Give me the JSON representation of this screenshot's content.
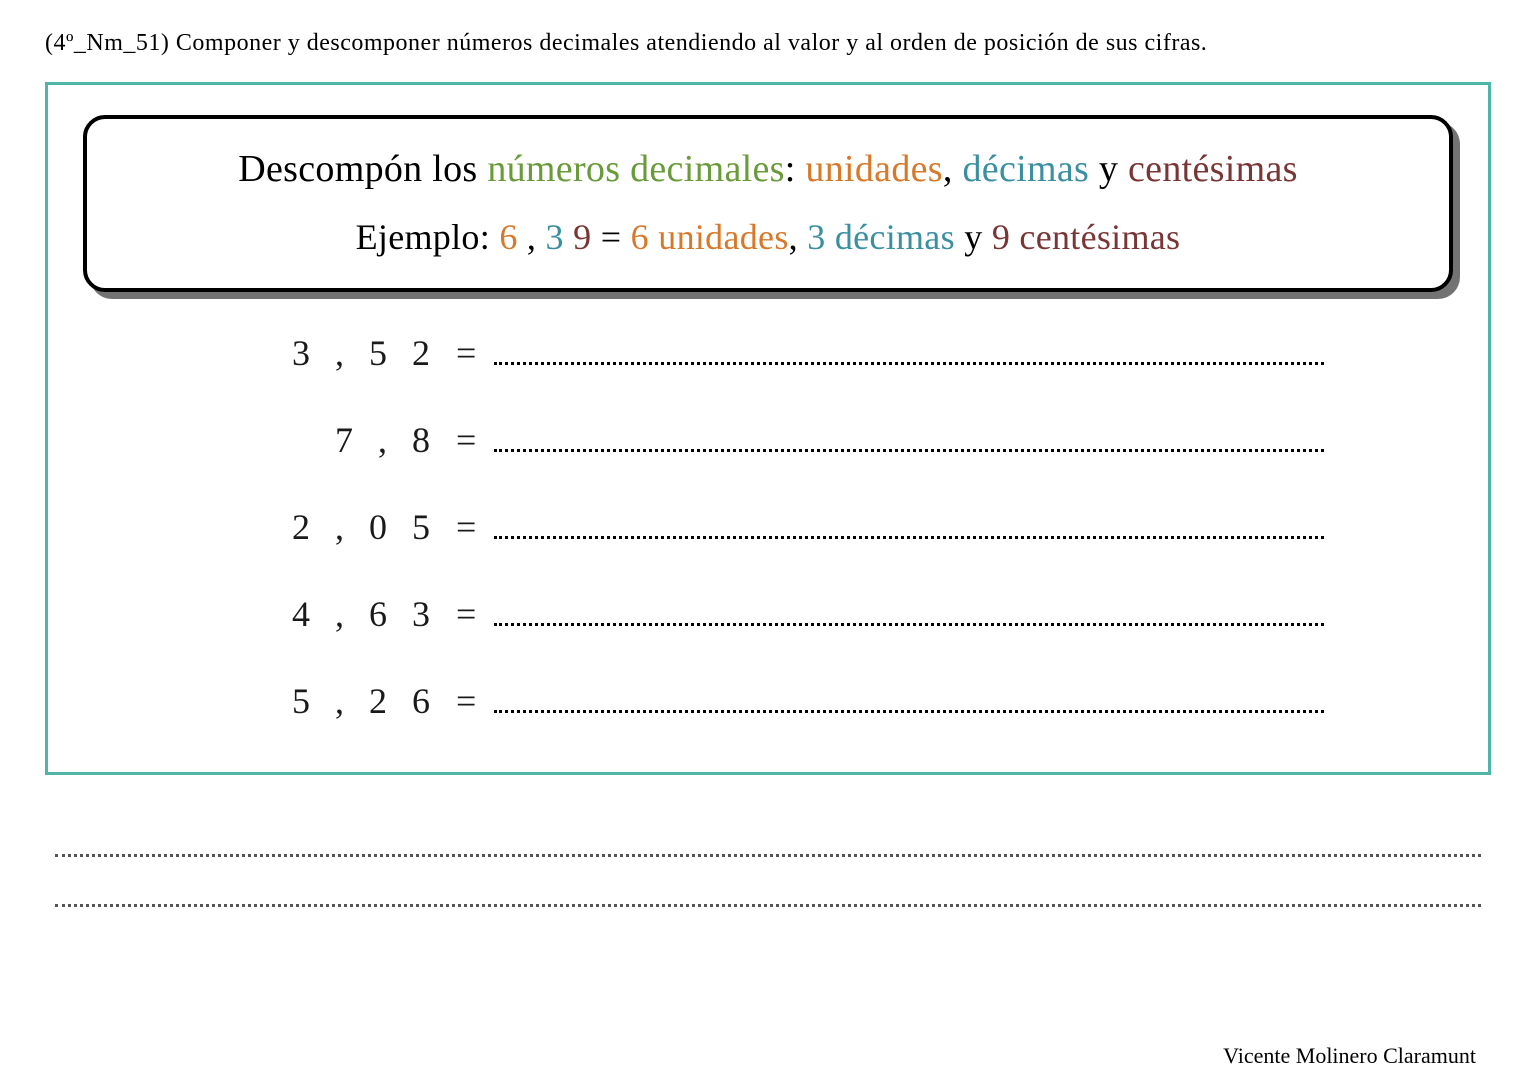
{
  "header": {
    "text": "(4º_Nm_51) Componer y descomponer números decimales atendiendo al valor y al orden de posición de sus cifras."
  },
  "instruction": {
    "line1": {
      "part1": "Descompón los ",
      "part2": "números decimales",
      "part3": ": ",
      "part4": "unidades",
      "part5": ", ",
      "part6": "décimas",
      "part7": " y ",
      "part8": "centésimas"
    },
    "line2": {
      "part1": "Ejemplo: ",
      "part2": "6",
      "part3": " , ",
      "part4": "3",
      "part5": " ",
      "part6": "9",
      "part7": "  =  ",
      "part8": "6 unidades",
      "part9": ", ",
      "part10": "3 décimas",
      "part11": " y ",
      "part12": "9 centésimas"
    }
  },
  "exercises": [
    {
      "number": "3 , 5 2",
      "equals": "="
    },
    {
      "number": "7 , 8",
      "equals": "="
    },
    {
      "number": "2 , 0 5",
      "equals": "="
    },
    {
      "number": "4 , 6 3",
      "equals": "="
    },
    {
      "number": "5 , 2 6",
      "equals": "="
    }
  ],
  "author": "Vicente Molinero Claramunt",
  "colors": {
    "border_teal": "#4fb5a8",
    "text_green": "#6a9b3a",
    "text_orange": "#d8792a",
    "text_teal": "#3a8fa0",
    "text_maroon": "#7a3535",
    "text_black": "#000000",
    "background": "#ffffff"
  }
}
